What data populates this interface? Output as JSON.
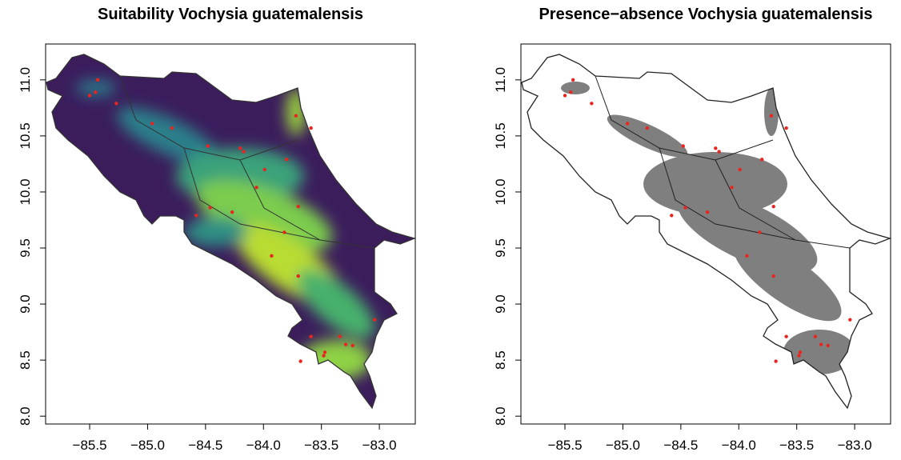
{
  "chart_data": [
    {
      "type": "map",
      "title": "Suitability Vochysia guatemalensis",
      "xlim": [
        -85.88,
        -82.69
      ],
      "ylim": [
        7.93,
        11.32
      ],
      "xticks": [
        {
          "value": -85.5,
          "label": "−85.5"
        },
        {
          "value": -85.0,
          "label": "−85.0"
        },
        {
          "value": -84.5,
          "label": "−84.5"
        },
        {
          "value": -84.0,
          "label": "−84.0"
        },
        {
          "value": -83.5,
          "label": "−83.5"
        },
        {
          "value": -83.0,
          "label": "−83.0"
        }
      ],
      "yticks": [
        {
          "value": 8.0,
          "label": "8.0"
        },
        {
          "value": 8.5,
          "label": "8.5"
        },
        {
          "value": 9.0,
          "label": "9.0"
        },
        {
          "value": 9.5,
          "label": "9.5"
        },
        {
          "value": 10.0,
          "label": "10.0"
        },
        {
          "value": 10.5,
          "label": "10.5"
        },
        {
          "value": 11.0,
          "label": "11.0"
        }
      ],
      "points": {
        "color": "#e8251f",
        "x": [
          -85.43,
          -85.45,
          -85.5,
          -85.27,
          -84.96,
          -84.79,
          -84.48,
          -84.2,
          -84.17,
          -83.99,
          -83.8,
          -84.06,
          -83.72,
          -83.59,
          -84.58,
          -84.46,
          -84.27,
          -83.7,
          -83.82,
          -83.7,
          -83.93,
          -83.59,
          -83.47,
          -83.34,
          -83.29,
          -83.23,
          -83.48,
          -83.68,
          -83.04
        ],
        "y": [
          11.0,
          10.89,
          10.86,
          10.79,
          10.61,
          10.57,
          10.41,
          10.39,
          10.36,
          10.2,
          10.29,
          10.04,
          10.68,
          10.57,
          9.79,
          9.86,
          9.82,
          9.87,
          9.64,
          9.25,
          9.43,
          8.71,
          8.57,
          8.71,
          8.64,
          8.63,
          8.54,
          8.49,
          8.86
        ]
      }
    },
    {
      "type": "map",
      "title": "Presence−absence Vochysia guatemalensis",
      "xlim": [
        -85.88,
        -82.69
      ],
      "ylim": [
        7.93,
        11.32
      ],
      "xticks": [
        {
          "value": -85.5,
          "label": "−85.5"
        },
        {
          "value": -85.0,
          "label": "−85.0"
        },
        {
          "value": -84.5,
          "label": "−84.5"
        },
        {
          "value": -84.0,
          "label": "−84.0"
        },
        {
          "value": -83.5,
          "label": "−83.5"
        },
        {
          "value": -83.0,
          "label": "−83.0"
        }
      ],
      "yticks": [
        {
          "value": 8.0,
          "label": "8.0"
        },
        {
          "value": 8.5,
          "label": "8.5"
        },
        {
          "value": 9.0,
          "label": "9.0"
        },
        {
          "value": 9.5,
          "label": "9.5"
        },
        {
          "value": 10.0,
          "label": "10.0"
        },
        {
          "value": 10.5,
          "label": "10.5"
        },
        {
          "value": 11.0,
          "label": "11.0"
        }
      ],
      "points": {
        "color": "#e8251f",
        "x": [
          -85.43,
          -85.45,
          -85.5,
          -85.27,
          -84.96,
          -84.79,
          -84.48,
          -84.2,
          -84.17,
          -83.99,
          -83.8,
          -84.06,
          -83.72,
          -83.59,
          -84.58,
          -84.46,
          -84.27,
          -83.7,
          -83.82,
          -83.7,
          -83.93,
          -83.59,
          -83.47,
          -83.34,
          -83.29,
          -83.23,
          -83.48,
          -83.68,
          -83.04
        ],
        "y": [
          11.0,
          10.89,
          10.86,
          10.79,
          10.61,
          10.57,
          10.41,
          10.39,
          10.36,
          10.2,
          10.29,
          10.04,
          10.68,
          10.57,
          9.79,
          9.86,
          9.82,
          9.87,
          9.64,
          9.25,
          9.43,
          8.71,
          8.57,
          8.71,
          8.64,
          8.63,
          8.54,
          8.49,
          8.86
        ]
      }
    }
  ]
}
